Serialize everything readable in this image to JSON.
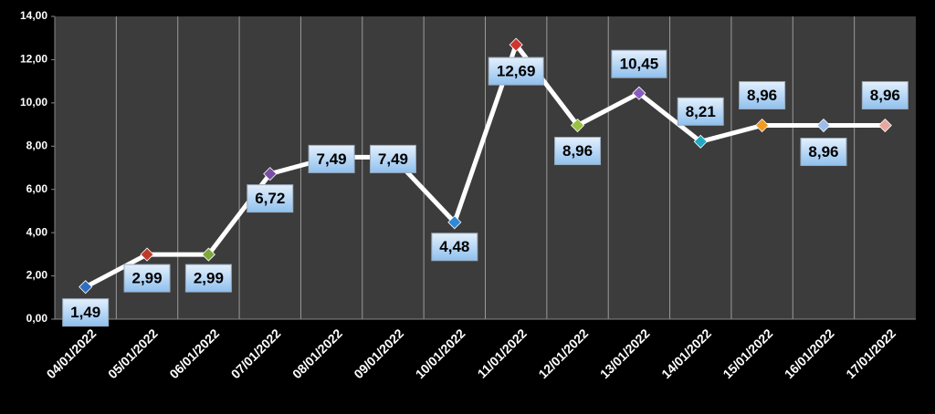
{
  "chart_data": {
    "type": "line",
    "categories": [
      "04/01/2022",
      "05/01/2022",
      "06/01/2022",
      "07/01/2022",
      "08/01/2022",
      "09/01/2022",
      "10/01/2022",
      "11/01/2022",
      "12/01/2022",
      "13/01/2022",
      "14/01/2022",
      "15/01/2022",
      "16/01/2022",
      "17/01/2022"
    ],
    "values": [
      1.49,
      2.99,
      2.99,
      6.72,
      7.49,
      7.49,
      4.48,
      12.69,
      8.96,
      10.45,
      8.21,
      8.96,
      8.96,
      8.96
    ],
    "value_labels": [
      "1,49",
      "2,99",
      "2,99",
      "6,72",
      "7,49",
      "7,49",
      "4,48",
      "12,69",
      "8,96",
      "10,45",
      "8,21",
      "8,96",
      "8,96",
      "8,96"
    ],
    "color": "#ffffff",
    "marker_colors": [
      "#2e6fc0",
      "#c0392b",
      "#7ea83a",
      "#7a4fa3",
      "#2aa6b8",
      "#e58a1f",
      "#2e8ad8",
      "#d0342c",
      "#98c23f",
      "#8a5cc0",
      "#23a9c2",
      "#f39a20",
      "#9dbde8",
      "#e8a8a0"
    ],
    "ylim": [
      0,
      14
    ],
    "yticks": [
      {
        "value": 0,
        "label": "0,00"
      },
      {
        "value": 2,
        "label": "2,00"
      },
      {
        "value": 4,
        "label": "4,00"
      },
      {
        "value": 6,
        "label": "6,00"
      },
      {
        "value": 8,
        "label": "8,00"
      },
      {
        "value": 10,
        "label": "10,00"
      },
      {
        "value": 12,
        "label": "12,00"
      },
      {
        "value": 14,
        "label": "14,00"
      }
    ]
  }
}
